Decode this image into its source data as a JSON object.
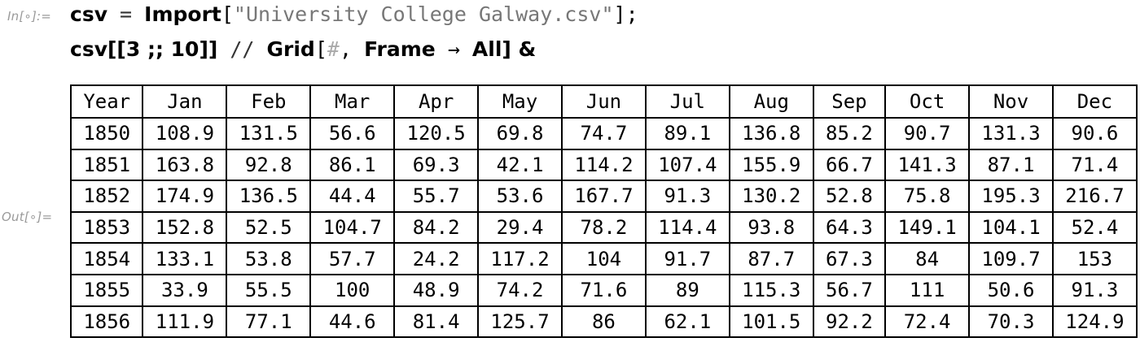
{
  "cell_labels": {
    "input": "In[∘]:=",
    "output": "Out[∘]="
  },
  "code": {
    "line1": {
      "var": "csv",
      "eq": " = ",
      "func": "Import",
      "open": "[",
      "string": "\"University College Galway.csv\"",
      "close": "];"
    },
    "line2": {
      "var": "csv",
      "part": "[[3 ;; 10]]",
      "postfix": " // ",
      "func": "Grid",
      "open": "[",
      "slot": "#",
      "comma": ", ",
      "option": "Frame",
      "arrow": " → ",
      "value": "All",
      "close": "] &"
    }
  },
  "grid": {
    "headers": [
      "Year",
      "Jan",
      "Feb",
      "Mar",
      "Apr",
      "May",
      "Jun",
      "Jul",
      "Aug",
      "Sep",
      "Oct",
      "Nov",
      "Dec"
    ],
    "rows": [
      [
        "1850",
        "108.9",
        "131.5",
        "56.6",
        "120.5",
        "69.8",
        "74.7",
        "89.1",
        "136.8",
        "85.2",
        "90.7",
        "131.3",
        "90.6"
      ],
      [
        "1851",
        "163.8",
        "92.8",
        "86.1",
        "69.3",
        "42.1",
        "114.2",
        "107.4",
        "155.9",
        "66.7",
        "141.3",
        "87.1",
        "71.4"
      ],
      [
        "1852",
        "174.9",
        "136.5",
        "44.4",
        "55.7",
        "53.6",
        "167.7",
        "91.3",
        "130.2",
        "52.8",
        "75.8",
        "195.3",
        "216.7"
      ],
      [
        "1853",
        "152.8",
        "52.5",
        "104.7",
        "84.2",
        "29.4",
        "78.2",
        "114.4",
        "93.8",
        "64.3",
        "149.1",
        "104.1",
        "52.4"
      ],
      [
        "1854",
        "133.1",
        "53.8",
        "57.7",
        "24.2",
        "117.2",
        "104",
        "91.7",
        "87.7",
        "67.3",
        "84",
        "109.7",
        "153"
      ],
      [
        "1855",
        "33.9",
        "55.5",
        "100",
        "48.9",
        "74.2",
        "71.6",
        "89",
        "115.3",
        "56.7",
        "111",
        "50.6",
        "91.3"
      ],
      [
        "1856",
        "111.9",
        "77.1",
        "44.6",
        "81.4",
        "125.7",
        "86",
        "62.1",
        "101.5",
        "92.2",
        "72.4",
        "70.3",
        "124.9"
      ]
    ]
  }
}
